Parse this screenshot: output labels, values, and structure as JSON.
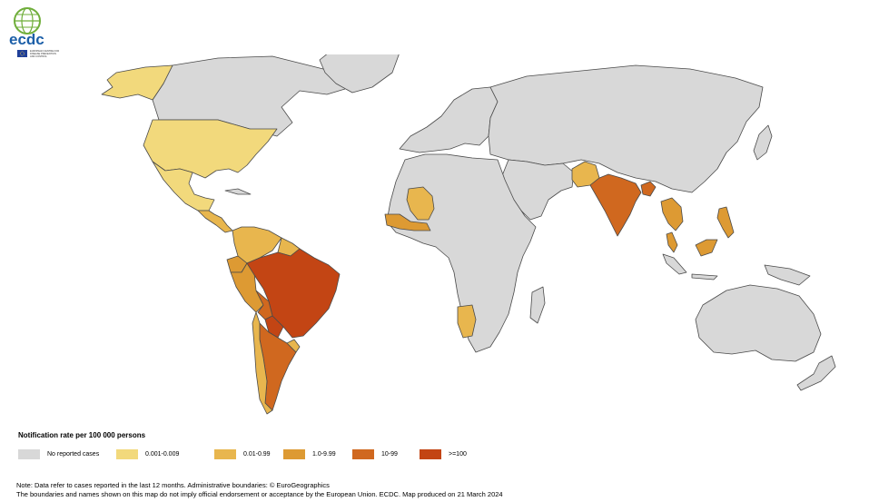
{
  "logo": {
    "wordmark": "ecdc",
    "agency_lines": [
      "EUROPEAN CENTRE FOR",
      "DISEASE PREVENTION",
      "AND CONTROL"
    ]
  },
  "colors": {
    "no_data": "#d8d8d8",
    "band1": "#f2d97c",
    "band2": "#e8b64e",
    "band3": "#dd9a33",
    "band4": "#d0681f",
    "band5": "#c34514",
    "border": "#4a4a4a"
  },
  "legend": {
    "title": "Notification rate per 100 000 persons",
    "items": [
      {
        "label": "No reported cases",
        "color_key": "no_data"
      },
      {
        "label": "0.001-0.009",
        "color_key": "band1"
      },
      {
        "label": "0.01-0.99",
        "color_key": "band2"
      },
      {
        "label": "1.0-9.99",
        "color_key": "band3"
      },
      {
        "label": "10-99",
        "color_key": "band4"
      },
      {
        "label": ">=100",
        "color_key": "band5"
      }
    ]
  },
  "regions": {
    "alaska": "band1",
    "usa": "band1",
    "mexico": "band1",
    "central_america": "band2",
    "venezuela_colombia": "band2",
    "guianas": "band2",
    "ecuador": "band3",
    "peru": "band3",
    "brazil": "band5",
    "bolivia": "band4",
    "paraguay": "band5",
    "argentina": "band4",
    "chile": "band2",
    "uruguay": "band2",
    "mali": "band2",
    "west_africa_coast": "band3",
    "namibia": "band2",
    "pakistan": "band2",
    "india": "band4",
    "bangladesh": "band4",
    "indochina": "band3",
    "malaysia": "band3",
    "borneo": "band3",
    "philippines": "band3"
  },
  "notes": {
    "line1": "Note: Data refer to cases reported in the last 12 months. Administrative boundaries: © EuroGeographics",
    "line2": "The boundaries and names shown on this map do not imply official endorsement or acceptance by the European Union. ECDC. Map produced on 21 March 2024"
  }
}
